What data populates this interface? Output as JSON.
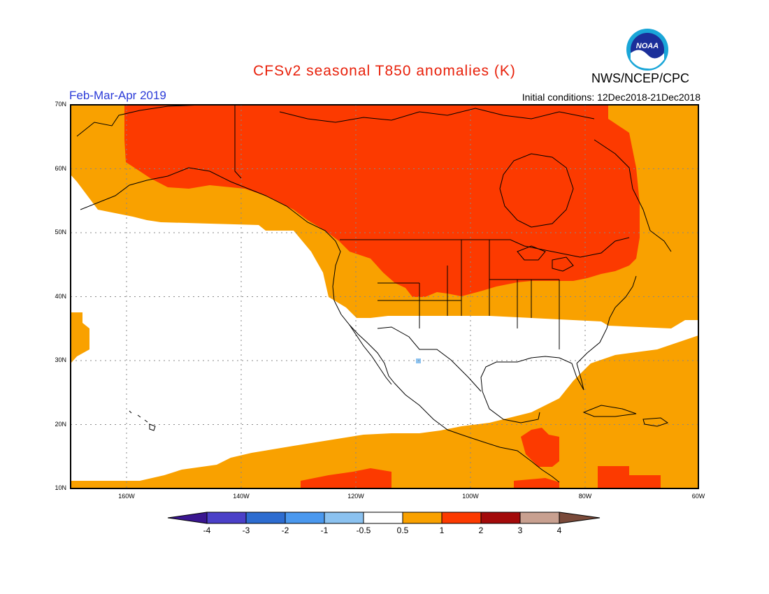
{
  "header": {
    "title": "CFSv2 seasonal T850 anomalies (K)",
    "period": "Feb-Mar-Apr 2019",
    "agency": "NWS/NCEP/CPC",
    "initial_conditions": "Initial conditions: 12Dec2018-21Dec2018",
    "logo_text": "NOAA"
  },
  "map": {
    "lon_range": [
      -172,
      -60
    ],
    "lat_range": [
      10,
      70
    ],
    "lat_ticks": [
      "10N",
      "20N",
      "30N",
      "40N",
      "50N",
      "60N",
      "70N"
    ],
    "lon_ticks": [
      "160W",
      "140W",
      "120W",
      "100W",
      "80W",
      "60W"
    ],
    "gridlines": "dotted"
  },
  "colorbar": {
    "labels": [
      "-4",
      "-3",
      "-2",
      "-1",
      "-0.5",
      "0.5",
      "1",
      "2",
      "3",
      "4"
    ],
    "colors": {
      "lt_-4": "#3a1690",
      "-4_-3": "#4b40c8",
      "-3_-2": "#2d6cd0",
      "-2_-1": "#4a98ee",
      "-1_-0.5": "#8bc2f0",
      "-0.5_0.5": "#ffffff",
      "0.5_1": "#f9a100",
      "1_2": "#fc3a00",
      "2_3": "#a30a0a",
      "3_4": "#c8a090",
      "gt_4": "#7a4a3a"
    }
  },
  "colors": {
    "title": "#e8200a",
    "period": "#2b3bd8"
  }
}
